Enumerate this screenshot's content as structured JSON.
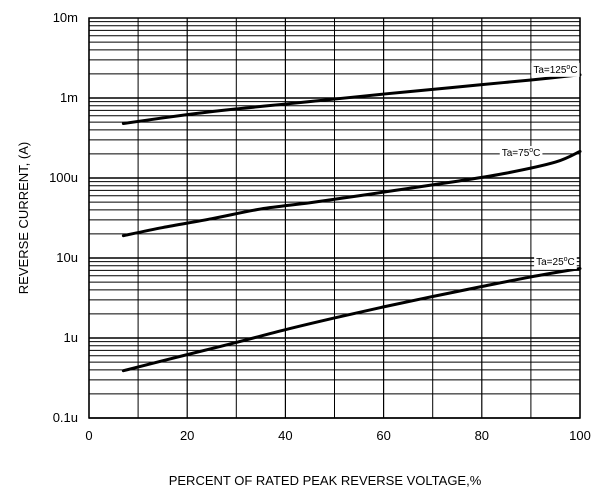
{
  "chart_data": {
    "type": "line",
    "title": "",
    "xlabel": "PERCENT OF RATED PEAK REVERSE VOLTAGE,%",
    "ylabel": "REVERSE CURRENT, (A)",
    "x_scale": "linear",
    "y_scale": "log",
    "xlim": [
      0,
      100
    ],
    "ylim": [
      1e-07,
      0.01
    ],
    "grid": true,
    "x_ticks": [
      {
        "value": 0,
        "label": "0"
      },
      {
        "value": 20,
        "label": "20"
      },
      {
        "value": 40,
        "label": "40"
      },
      {
        "value": 60,
        "label": "60"
      },
      {
        "value": 80,
        "label": "80"
      },
      {
        "value": 100,
        "label": "100"
      }
    ],
    "y_ticks": [
      {
        "value": 1e-07,
        "label": "0.1u"
      },
      {
        "value": 1e-06,
        "label": "1u"
      },
      {
        "value": 1e-05,
        "label": "10u"
      },
      {
        "value": 0.0001,
        "label": "100u"
      },
      {
        "value": 0.001,
        "label": "1m"
      },
      {
        "value": 0.01,
        "label": "10m"
      }
    ],
    "series": [
      {
        "label_parts": [
          "Ta=125",
          "o",
          "C"
        ],
        "label_x": 95,
        "label_y": 0.00225,
        "x": [
          7,
          20,
          30,
          40,
          50,
          60,
          70,
          80,
          90,
          100
        ],
        "y": [
          0.00048,
          0.00062,
          0.00073,
          0.00084,
          0.00097,
          0.00112,
          0.00128,
          0.00147,
          0.00168,
          0.00195
        ]
      },
      {
        "label_parts": [
          "Ta=75",
          "o",
          "C"
        ],
        "label_x": 88,
        "label_y": 0.000205,
        "x": [
          7,
          15,
          25,
          35,
          45,
          55,
          65,
          75,
          85,
          95,
          100
        ],
        "y": [
          1.9e-05,
          2.4e-05,
          3.1e-05,
          4.1e-05,
          4.9e-05,
          6e-05,
          7.4e-05,
          9.1e-05,
          0.000115,
          0.000158,
          0.000215
        ]
      },
      {
        "label_parts": [
          "Ta=25",
          "o",
          "C"
        ],
        "label_x": 95,
        "label_y": 8.9e-06,
        "x": [
          7,
          20,
          30,
          40,
          50,
          60,
          70,
          80,
          90,
          100
        ],
        "y": [
          3.9e-07,
          6.2e-07,
          8.8e-07,
          1.27e-06,
          1.78e-06,
          2.45e-06,
          3.3e-06,
          4.4e-06,
          5.8e-06,
          7.4e-06
        ]
      }
    ]
  }
}
